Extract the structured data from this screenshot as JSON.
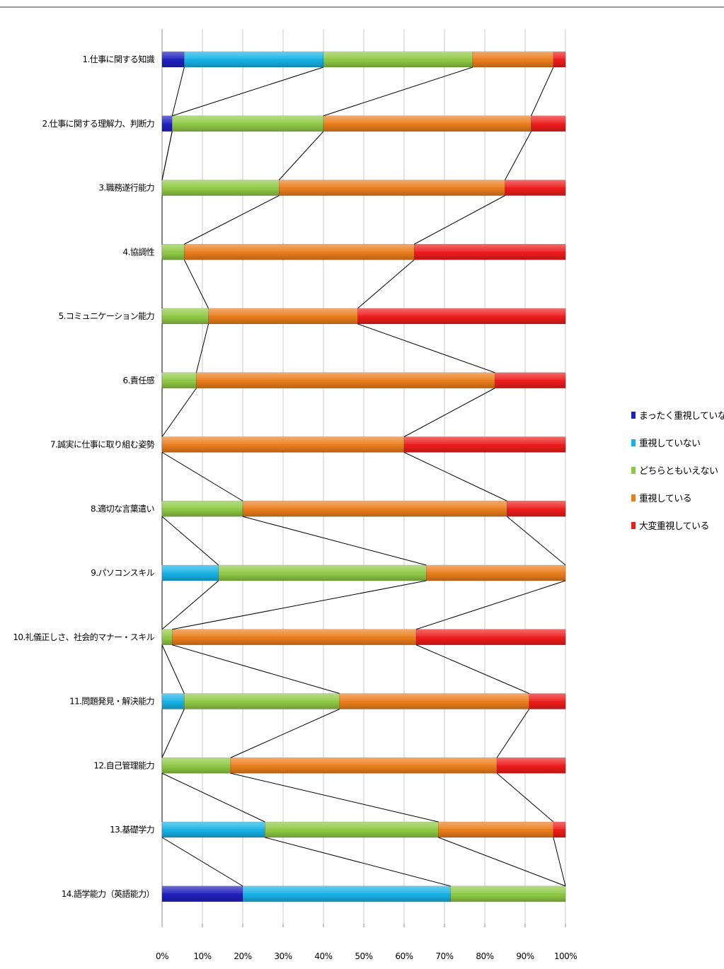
{
  "chart_data": {
    "type": "bar",
    "orientation": "horizontal",
    "stacked": "percent",
    "series_lines": true,
    "title": "",
    "xlabel": "",
    "ylabel": "",
    "xlim": [
      0,
      100
    ],
    "x_ticks": [
      "0%",
      "10%",
      "20%",
      "30%",
      "40%",
      "50%",
      "60%",
      "70%",
      "80%",
      "90%",
      "100%"
    ],
    "grid": "vertical",
    "legend_position": "right",
    "categories": [
      "1.仕事に関する知識",
      "2.仕事に関する理解力、判断力",
      "3.職務遂行能力",
      "4.協調性",
      "5.コミュニケーション能力",
      "6.責任感",
      "7.誠実に仕事に取り組む姿勢",
      "8.適切な言葉遣い",
      "9.パソコンスキル",
      "10.礼儀正しさ、社会的マナー・スキル",
      "11.問題発見・解決能力",
      "12.自己管理能力",
      "13.基礎学力",
      "14.語学能力（英語能力）"
    ],
    "series": [
      {
        "name": "まったく重視していない",
        "color": "#1f1fbf",
        "values": [
          5.5,
          2.5,
          0,
          0,
          0,
          0,
          0,
          0,
          0,
          0,
          0,
          0,
          0,
          20
        ]
      },
      {
        "name": "重視していない",
        "color": "#17b2e6",
        "values": [
          34.5,
          0,
          0,
          0,
          0,
          0,
          0,
          0,
          14,
          0,
          5.5,
          0,
          25.5,
          51.5
        ]
      },
      {
        "name": "どちらともいえない",
        "color": "#8fc944",
        "values": [
          37,
          37.5,
          29,
          5.5,
          11.5,
          8.5,
          0,
          20,
          51.5,
          2.5,
          38.5,
          17,
          43,
          28.5
        ]
      },
      {
        "name": "重視している",
        "color": "#eb7d1c",
        "values": [
          20,
          51.5,
          56,
          57,
          37,
          74,
          60,
          65.5,
          34.5,
          60.5,
          47,
          66,
          28.5,
          0
        ]
      },
      {
        "name": "大変重視している",
        "color": "#ee1c1c",
        "values": [
          3,
          8.5,
          15,
          37.5,
          51.5,
          17.5,
          40,
          14.5,
          0,
          37,
          9,
          17,
          3,
          0
        ]
      }
    ]
  }
}
